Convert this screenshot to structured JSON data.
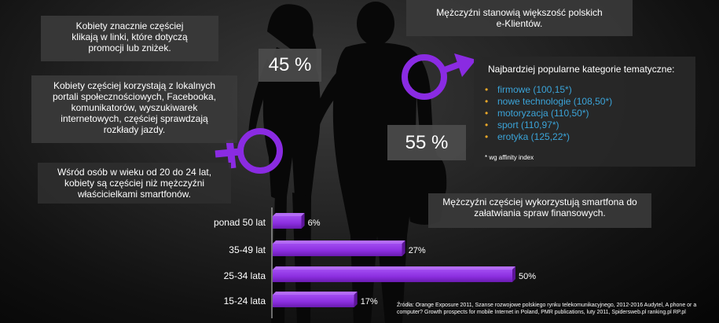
{
  "female_clicks_text": "Kobiety znacznie częściej klikają w linki, które dotyczą promocji lub zniżek.",
  "female_local_text": "Kobiety częściej korzystają z lokalnych portali społecznościowych, Facebooka, komunikatorów, wyszukiwarek internetowych, częściej sprawdzają rozkłady jazdy.",
  "female_young_text": "Wśród osób w wieku od 20 do 24 lat, kobiety są częściej niż mężczyźni właścicielkami smartfonów.",
  "female_share_label": "45 %",
  "male_share_label": "55 %",
  "male_majority_text": "Mężczyźni stanowią większość polskich e-Klientów.",
  "male_finance_text": "Mężczyźni częściej wykorzystują smartfona do załatwiania spraw finansowych.",
  "categories_panel": {
    "title": "Najbardziej popularne  kategorie tematyczne:",
    "items": [
      "firmowe (100,15*)",
      "nowe technologie (108,50*)",
      "motoryzacja (110,50*)",
      "sport (110,97*)",
      "erotyka (125,22*)"
    ],
    "note": "* wg affinity index"
  },
  "source_text": "Źródła:  Orange Exposure 2011, Szanse rozwojowe polskiego rynku telekomunikacyjnego, 2012-2016 Audytel,  A phone or a computer? Growth prospects for mobile Internet in Poland, PMR publications, luty 2011, Spidersweb.pl ranking.pl RP.pl",
  "colors": {
    "accent_purple": "#8a2be2",
    "bar_purple": "#8c2fe0",
    "category_blue": "#3ba4d9",
    "bullet_orange": "#e8a628"
  },
  "icons": [
    "female-symbol-icon",
    "male-symbol-icon",
    "couple-silhouette-icon"
  ],
  "chart_data": {
    "type": "bar",
    "orientation": "horizontal",
    "categories": [
      "ponad 50 lat",
      "35-49 lat",
      "25-34 lata",
      "15-24 lata"
    ],
    "values": [
      6,
      27,
      50,
      17
    ],
    "value_labels": [
      "6%",
      "27%",
      "50%",
      "17%"
    ],
    "xlim": [
      0,
      50
    ]
  }
}
